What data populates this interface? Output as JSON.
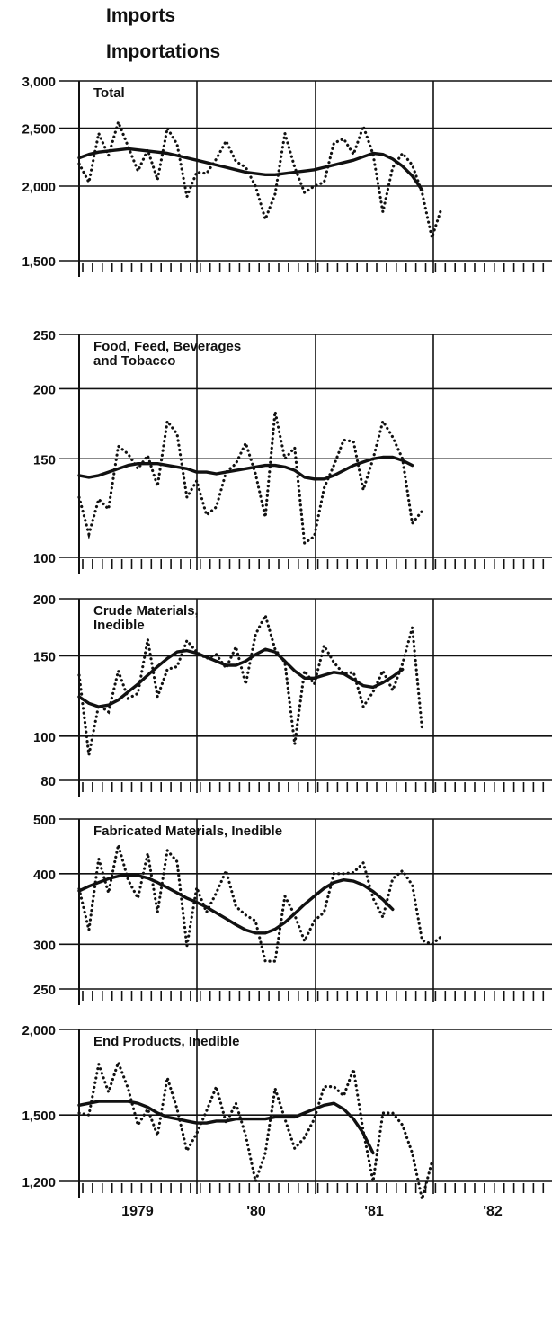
{
  "header": {
    "line1": "Imports",
    "line2": "Importations"
  },
  "x_axis": {
    "year_labels": [
      "1979",
      "'80",
      "'81",
      "'82"
    ]
  },
  "chart_data": [
    {
      "type": "line",
      "title": "Total",
      "scale": "log",
      "ylim": [
        1500,
        3000
      ],
      "yticks": [
        {
          "value": 1500,
          "label": "1,500"
        },
        {
          "value": 2000,
          "label": "2,000"
        },
        {
          "value": 2500,
          "label": "2,500"
        },
        {
          "value": 3000,
          "label": "3,000"
        }
      ],
      "series": [
        {
          "style": "dotted",
          "values": [
            2180,
            2030,
            2450,
            2250,
            2560,
            2330,
            2120,
            2300,
            2050,
            2500,
            2350,
            1920,
            2110,
            2100,
            2220,
            2380,
            2200,
            2150,
            2000,
            1760,
            1940,
            2450,
            2150,
            1950,
            2000,
            2030,
            2360,
            2400,
            2260,
            2520,
            2260,
            1810,
            2150,
            2270,
            2170,
            1950,
            1640,
            1840
          ]
        },
        {
          "style": "solid",
          "values": [
            2230,
            2260,
            2280,
            2290,
            2300,
            2310,
            2300,
            2290,
            2280,
            2270,
            2250,
            2230,
            2210,
            2190,
            2170,
            2150,
            2130,
            2110,
            2100,
            2090,
            2090,
            2100,
            2110,
            2120,
            2130,
            2150,
            2170,
            2190,
            2210,
            2240,
            2270,
            2260,
            2220,
            2160,
            2080,
            1970
          ]
        }
      ]
    },
    {
      "type": "line",
      "title": "Food, Feed, Beverages and Tobacco",
      "title_lines": [
        "Food, Feed, Beverages",
        "and Tobacco"
      ],
      "scale": "log",
      "ylim": [
        100,
        250
      ],
      "yticks": [
        {
          "value": 100,
          "label": "100"
        },
        {
          "value": 150,
          "label": "150"
        },
        {
          "value": 200,
          "label": "200"
        },
        {
          "value": 250,
          "label": "250"
        }
      ],
      "series": [
        {
          "style": "dotted",
          "values": [
            128,
            110,
            127,
            122,
            158,
            153,
            144,
            152,
            134,
            175,
            166,
            128,
            137,
            119,
            123,
            142,
            147,
            160,
            141,
            118,
            182,
            150,
            157,
            106,
            109,
            133,
            146,
            162,
            161,
            132,
            150,
            175,
            164,
            150,
            115,
            121
          ]
        },
        {
          "style": "solid",
          "values": [
            140,
            139,
            140,
            142,
            144,
            146,
            147,
            147,
            147,
            146,
            145,
            144,
            142,
            142,
            141,
            142,
            143,
            144,
            145,
            146,
            146,
            145,
            143,
            139,
            138,
            138,
            140,
            143,
            146,
            148,
            150,
            151,
            151,
            149,
            146
          ]
        }
      ]
    },
    {
      "type": "line",
      "title": "Crude Materials, Inedible",
      "title_lines": [
        "Crude Materials,",
        "Inedible"
      ],
      "scale": "log",
      "ylim": [
        80,
        200
      ],
      "yticks": [
        {
          "value": 80,
          "label": "80"
        },
        {
          "value": 100,
          "label": "100"
        },
        {
          "value": 150,
          "label": "150"
        },
        {
          "value": 200,
          "label": "200"
        }
      ],
      "series": [
        {
          "style": "dotted",
          "values": [
            136,
            91,
            117,
            113,
            139,
            121,
            124,
            163,
            122,
            140,
            142,
            162,
            153,
            148,
            151,
            141,
            157,
            130,
            167,
            184,
            155,
            145,
            96,
            139,
            130,
            158,
            145,
            137,
            138,
            116,
            125,
            139,
            126,
            144,
            173,
            104
          ]
        },
        {
          "style": "solid",
          "values": [
            122,
            118,
            116,
            117,
            120,
            125,
            130,
            136,
            142,
            148,
            153,
            154,
            152,
            149,
            146,
            143,
            143,
            146,
            151,
            155,
            153,
            146,
            139,
            134,
            134,
            136,
            138,
            137,
            133,
            129,
            128,
            131,
            135,
            140
          ]
        }
      ]
    },
    {
      "type": "line",
      "title": "Fabricated Materials, Inedible",
      "scale": "log",
      "ylim": [
        250,
        500
      ],
      "yticks": [
        {
          "value": 250,
          "label": "250"
        },
        {
          "value": 300,
          "label": "300"
        },
        {
          "value": 400,
          "label": "400"
        },
        {
          "value": 500,
          "label": "500"
        }
      ],
      "series": [
        {
          "style": "dotted",
          "values": [
            376,
            318,
            425,
            370,
            450,
            390,
            362,
            435,
            342,
            440,
            420,
            298,
            378,
            342,
            370,
            405,
            350,
            338,
            330,
            280,
            280,
            365,
            338,
            304,
            330,
            342,
            400,
            400,
            402,
            418,
            362,
            335,
            392,
            405,
            382,
            305,
            300,
            310
          ]
        },
        {
          "style": "solid",
          "values": [
            373,
            380,
            386,
            392,
            396,
            398,
            397,
            393,
            386,
            378,
            370,
            362,
            356,
            349,
            341,
            333,
            325,
            318,
            314,
            314,
            319,
            328,
            340,
            353,
            365,
            377,
            386,
            390,
            388,
            382,
            372,
            360,
            346
          ]
        }
      ]
    },
    {
      "type": "line",
      "title": "End Products, Inedible",
      "scale": "log",
      "ylim": [
        1200,
        2000
      ],
      "yticks": [
        {
          "value": 1200,
          "label": "1,200"
        },
        {
          "value": 1500,
          "label": "1,500"
        },
        {
          "value": 2000,
          "label": "2,000"
        }
      ],
      "series": [
        {
          "style": "dotted",
          "values": [
            1510,
            1500,
            1780,
            1620,
            1790,
            1640,
            1450,
            1530,
            1400,
            1700,
            1530,
            1330,
            1410,
            1520,
            1650,
            1460,
            1560,
            1400,
            1200,
            1320,
            1640,
            1480,
            1340,
            1390,
            1480,
            1650,
            1650,
            1600,
            1750,
            1420,
            1200,
            1510,
            1510,
            1450,
            1320,
            1130,
            1280
          ]
        },
        {
          "style": "solid",
          "values": [
            1550,
            1560,
            1570,
            1570,
            1570,
            1570,
            1560,
            1540,
            1510,
            1490,
            1480,
            1470,
            1460,
            1460,
            1470,
            1470,
            1480,
            1480,
            1480,
            1480,
            1490,
            1490,
            1490,
            1510,
            1530,
            1550,
            1560,
            1530,
            1480,
            1410,
            1320
          ]
        }
      ]
    }
  ]
}
